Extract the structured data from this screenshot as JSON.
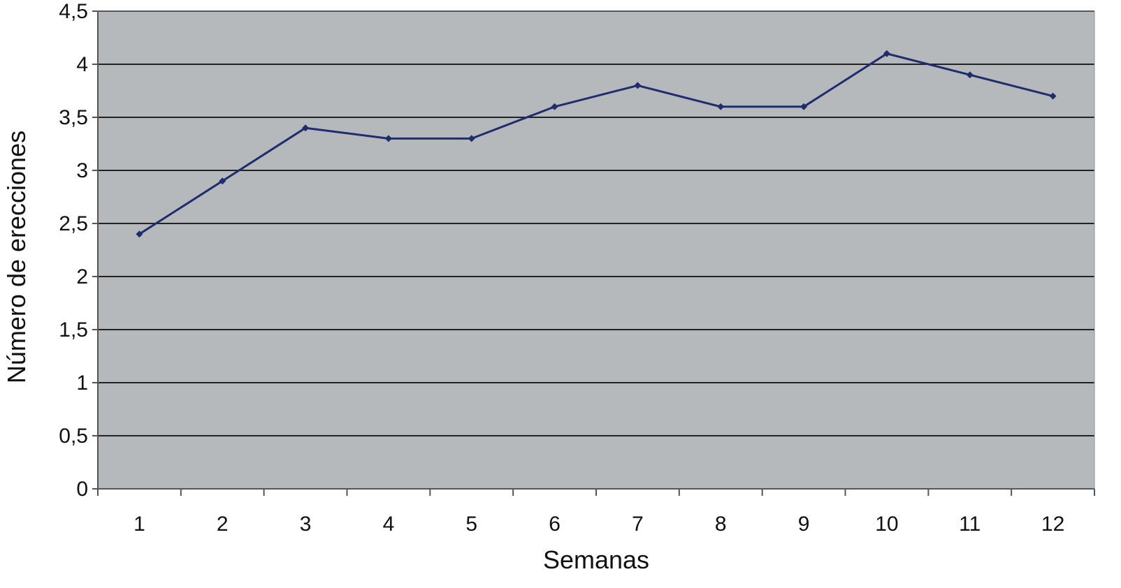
{
  "chart_data": {
    "type": "line",
    "xlabel": "Semanas",
    "ylabel": "Número de erecciones",
    "categories": [
      "1",
      "2",
      "3",
      "4",
      "5",
      "6",
      "7",
      "8",
      "9",
      "10",
      "11",
      "12"
    ],
    "y_ticks": [
      "0",
      "0,5",
      "1",
      "1,5",
      "2",
      "2,5",
      "3",
      "3,5",
      "4",
      "4,5"
    ],
    "ylim": [
      0,
      4.5
    ],
    "grid": true,
    "legend": "none",
    "series": [
      {
        "values": [
          2.4,
          2.9,
          3.4,
          3.3,
          3.3,
          3.6,
          3.8,
          3.6,
          3.6,
          4.1,
          3.9,
          3.7
        ]
      }
    ],
    "colors": {
      "plot_background": "#b5b9bb",
      "line": "#1f2d6e",
      "gridline": "#222222",
      "axis": "#555555"
    }
  }
}
